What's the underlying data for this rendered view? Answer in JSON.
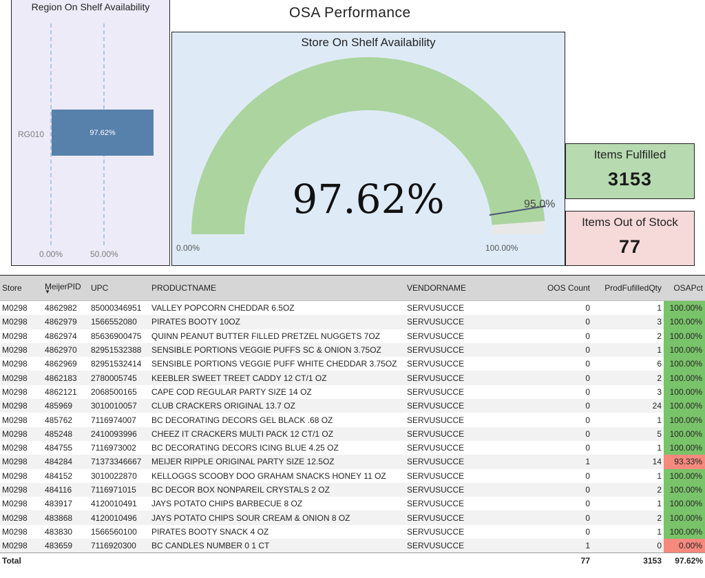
{
  "header": {
    "title": "OSA Performance"
  },
  "region_chart": {
    "title": "Region On Shelf Availability",
    "chart_data": {
      "type": "bar",
      "orientation": "horizontal",
      "categories": [
        "RG010"
      ],
      "values": [
        97.62
      ],
      "data_labels": [
        "97.62%"
      ],
      "xticks": [
        "0.00%",
        "50.00%"
      ],
      "xlim": [
        0,
        100
      ],
      "colors": {
        "bar": "#5780ab",
        "background": "#eeebf8",
        "gridline": "#a9c9e8"
      }
    }
  },
  "gauge": {
    "title": "Store On Shelf Availability",
    "value_label": "97.62%",
    "min_label": "0.00%",
    "max_label": "100.00%",
    "target_label": "95.0%",
    "chart_data": {
      "type": "gauge",
      "value": 97.62,
      "min": 0,
      "max": 100,
      "target": 95.0,
      "colors": {
        "fill": "#acd49f",
        "track": "#e8e8e8",
        "target": "#4a5678",
        "background": "#deebf7"
      }
    }
  },
  "kpis": {
    "fulfilled": {
      "label": "Items Fulfilled",
      "value": "3153",
      "color": "#b7dab0"
    },
    "oos": {
      "label": "Items Out of Stock",
      "value": "77",
      "color": "#f6d9d9"
    }
  },
  "table": {
    "columns": [
      "Store",
      "MeijerPID",
      "UPC",
      "PRODUCTNAME",
      "VENDORNAME",
      "OOS Count",
      "ProdFufilledQty",
      "OSAPct"
    ],
    "sorted_column": "MeijerPID",
    "rows": [
      [
        "M0298",
        "4862982",
        "85000346951",
        "VALLEY POPCORN CHEDDAR 6.5OZ",
        "SERVUSUCCE",
        "0",
        "1",
        "100.00%"
      ],
      [
        "M0298",
        "4862979",
        "1566552080",
        "PIRATES BOOTY 10OZ",
        "SERVUSUCCE",
        "0",
        "3",
        "100.00%"
      ],
      [
        "M0298",
        "4862974",
        "85636900475",
        "QUINN PEANUT BUTTER FILLED PRETZEL NUGGETS 7OZ",
        "SERVUSUCCE",
        "0",
        "2",
        "100.00%"
      ],
      [
        "M0298",
        "4862970",
        "82951532388",
        "SENSIBLE PORTIONS VEGGIE PUFFS SC & ONION 3.75OZ",
        "SERVUSUCCE",
        "0",
        "1",
        "100.00%"
      ],
      [
        "M0298",
        "4862969",
        "82951532414",
        "SENSIBLE PORTIONS VEGGIE PUFF WHITE CHEDDAR 3.75OZ",
        "SERVUSUCCE",
        "0",
        "6",
        "100.00%"
      ],
      [
        "M0298",
        "4862183",
        "2780005745",
        "KEEBLER SWEET TREET CADDY 12 CT/1 OZ",
        "SERVUSUCCE",
        "0",
        "2",
        "100.00%"
      ],
      [
        "M0298",
        "4862121",
        "2068500165",
        "CAPE COD REGULAR PARTY SIZE 14 OZ",
        "SERVUSUCCE",
        "0",
        "3",
        "100.00%"
      ],
      [
        "M0298",
        "485969",
        "3010010057",
        "CLUB CRACKERS ORIGINAL 13.7 OZ",
        "SERVUSUCCE",
        "0",
        "24",
        "100.00%"
      ],
      [
        "M0298",
        "485762",
        "7116974007",
        "BC DECORATING DECORS GEL BLACK .68 OZ",
        "SERVUSUCCE",
        "0",
        "1",
        "100.00%"
      ],
      [
        "M0298",
        "485248",
        "2410093996",
        "CHEEZ IT CRACKERS MULTI PACK 12 CT/1 OZ",
        "SERVUSUCCE",
        "0",
        "5",
        "100.00%"
      ],
      [
        "M0298",
        "484755",
        "7116973002",
        "BC DECORATING DECORS ICING BLUE 4.25 OZ",
        "SERVUSUCCE",
        "0",
        "1",
        "100.00%"
      ],
      [
        "M0298",
        "484284",
        "71373346667",
        "MEIJER RIPPLE ORIGINAL PARTY SIZE 12.5OZ",
        "SERVUSUCCE",
        "1",
        "14",
        "93.33%"
      ],
      [
        "M0298",
        "484152",
        "3010022870",
        "KELLOGGS SCOOBY DOO GRAHAM SNACKS HONEY 11 OZ",
        "SERVUSUCCE",
        "0",
        "1",
        "100.00%"
      ],
      [
        "M0298",
        "484116",
        "7116971015",
        "BC DECOR BOX NONPAREIL CRYSTALS 2 OZ",
        "SERVUSUCCE",
        "0",
        "2",
        "100.00%"
      ],
      [
        "M0298",
        "483917",
        "4120010491",
        "JAYS POTATO CHIPS BARBECUE 8 OZ",
        "SERVUSUCCE",
        "0",
        "1",
        "100.00%"
      ],
      [
        "M0298",
        "483868",
        "4120010496",
        "JAYS POTATO CHIPS SOUR CREAM & ONION 8 OZ",
        "SERVUSUCCE",
        "0",
        "2",
        "100.00%"
      ],
      [
        "M0298",
        "483830",
        "1566560100",
        "PIRATES BOOTY SNACK 4 OZ",
        "SERVUSUCCE",
        "0",
        "1",
        "100.00%"
      ],
      [
        "M0298",
        "483659",
        "7116920300",
        "BC CANDLES NUMBER 0 1 CT",
        "SERVUSUCCE",
        "1",
        "0",
        "0.00%"
      ]
    ],
    "total": {
      "label": "Total",
      "oos_count": "77",
      "fulfilled_qty": "3153",
      "osa_pct": "97.62%"
    },
    "colors": {
      "good": "#79c36a",
      "bad": "#f4897d"
    }
  }
}
